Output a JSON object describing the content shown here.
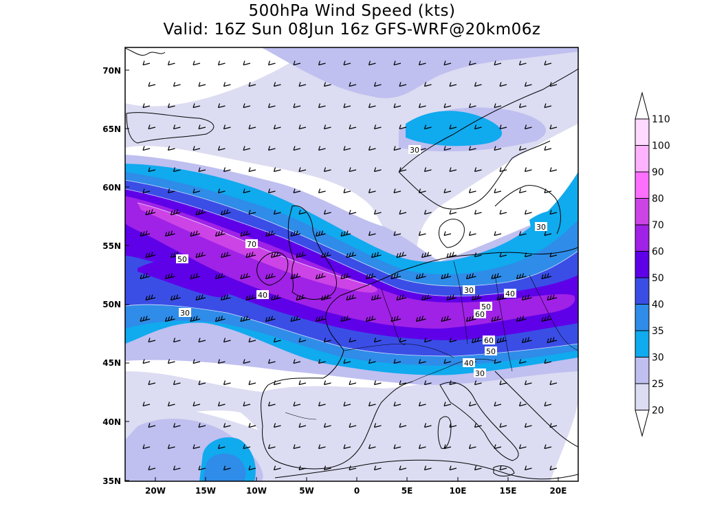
{
  "title": {
    "line1": "500hPa Wind Speed (kts)",
    "line2": "Valid: 16Z Sun 08Jun 16z GFS-WRF@20km06z"
  },
  "map": {
    "latitude_labels": [
      "70N",
      "65N",
      "60N",
      "55N",
      "50N",
      "45N",
      "40N",
      "35N"
    ],
    "longitude_labels": [
      "20W",
      "15W",
      "10W",
      "5W",
      "0",
      "5E",
      "10E",
      "15E",
      "20E"
    ],
    "contour_labels": [
      "30",
      "70",
      "50",
      "40",
      "30",
      "30",
      "40",
      "50",
      "60",
      "60",
      "50",
      "40",
      "30",
      "30"
    ]
  },
  "colorbar": {
    "levels": [
      "110",
      "100",
      "90",
      "80",
      "70",
      "60",
      "50",
      "40",
      "35",
      "30",
      "25",
      "20"
    ],
    "colors": [
      "#ffffff",
      "#ffd9ff",
      "#ffb3ff",
      "#ff6fff",
      "#cc44e6",
      "#a022e6",
      "#5e00e8",
      "#3a4ee6",
      "#2f8ce8",
      "#10aaee",
      "#bfbff0",
      "#dcdcf2"
    ]
  },
  "palette": {
    "ocean": "#ffffff",
    "level_20": "#dcdcf2",
    "level_25": "#bfbff0",
    "level_30": "#10aaee",
    "level_35": "#2f8ce8",
    "level_40": "#3a4ee6",
    "level_50": "#5e00e8",
    "level_60": "#a022e6",
    "level_70": "#cc44e6"
  }
}
